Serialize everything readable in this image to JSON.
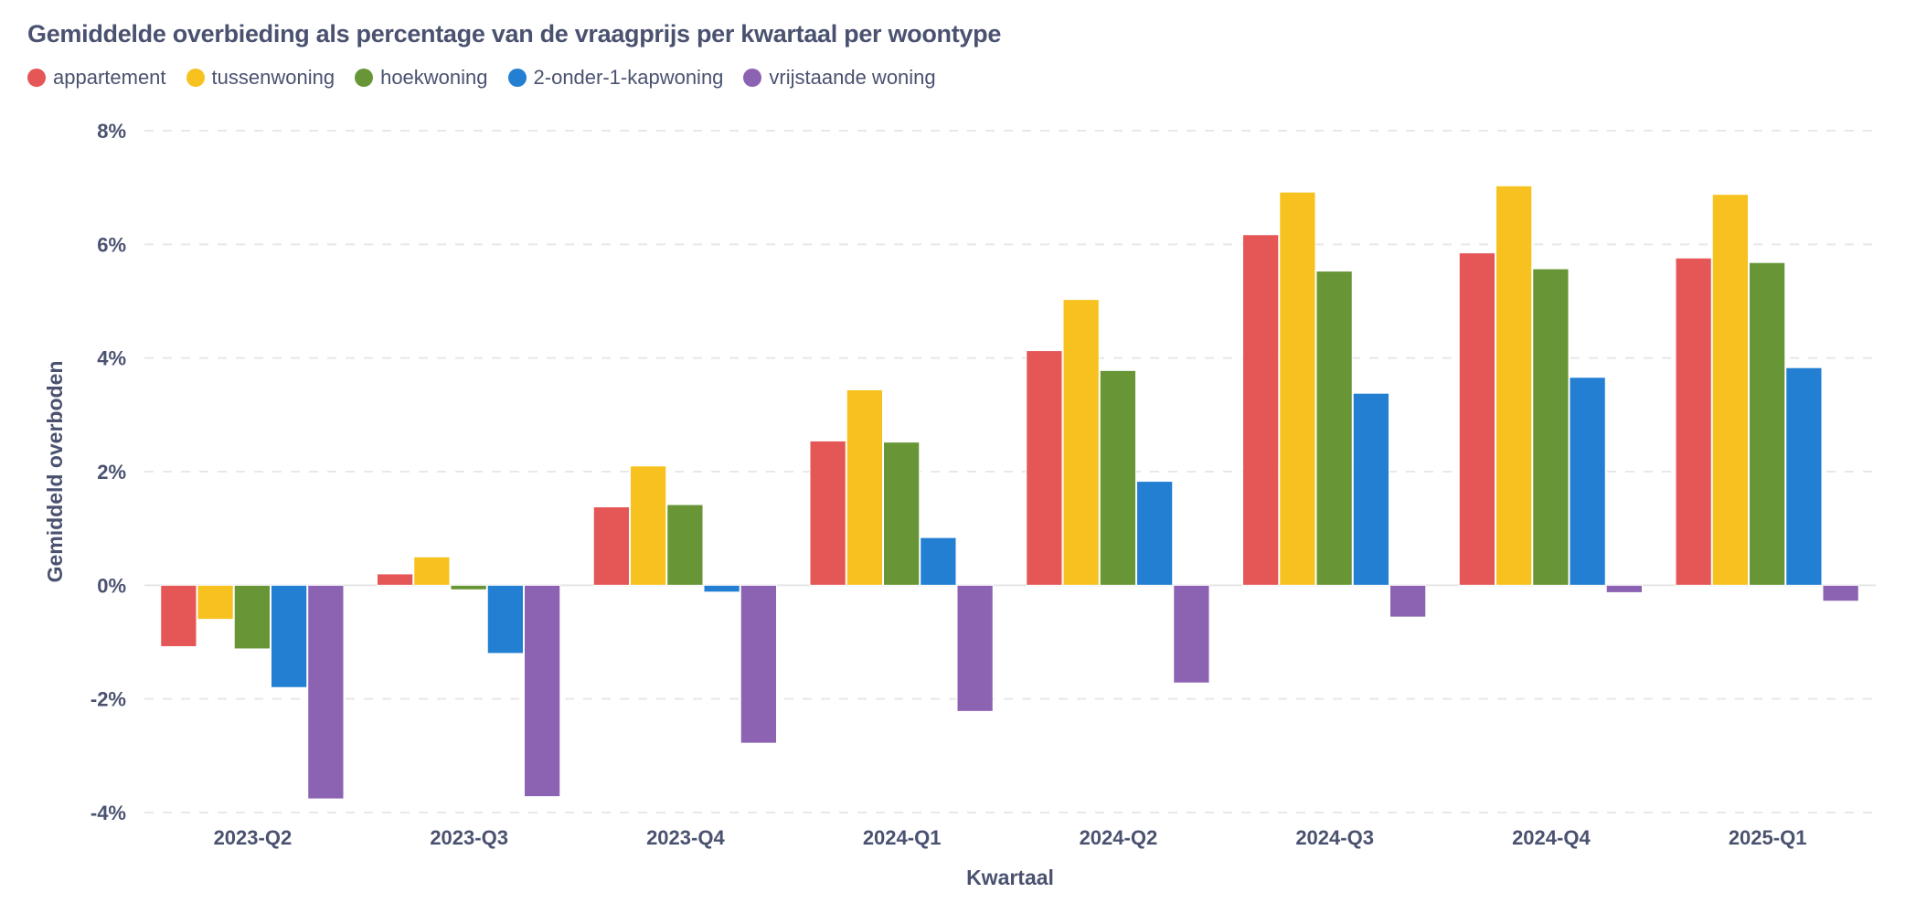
{
  "chart_data": {
    "type": "bar",
    "title": "Gemiddelde overbieding als percentage van de vraagprijs per kwartaal per woontype",
    "xlabel": "Kwartaal",
    "ylabel": "Gemiddeld overboden",
    "ylim": [
      -4,
      8
    ],
    "yticks": [
      -4,
      -2,
      0,
      2,
      4,
      6,
      8
    ],
    "ytick_labels": [
      "-4%",
      "-2%",
      "0%",
      "2%",
      "4%",
      "6%",
      "8%"
    ],
    "grid": "horizontal dashed",
    "legend_position": "top-left",
    "categories": [
      "2023-Q2",
      "2023-Q3",
      "2023-Q4",
      "2024-Q1",
      "2024-Q2",
      "2024-Q3",
      "2024-Q4",
      "2025-Q1"
    ],
    "series": [
      {
        "name": "appartement",
        "color": "#E55656",
        "values": [
          -1.08,
          0.2,
          1.38,
          2.54,
          4.13,
          6.17,
          5.85,
          5.76
        ]
      },
      {
        "name": "tussenwoning",
        "color": "#F7C21F",
        "values": [
          -0.6,
          0.5,
          2.1,
          3.44,
          5.03,
          6.92,
          7.03,
          6.88
        ]
      },
      {
        "name": "hoekwoning",
        "color": "#689636",
        "values": [
          -1.12,
          -0.08,
          1.42,
          2.52,
          3.78,
          5.53,
          5.57,
          5.68
        ]
      },
      {
        "name": "2-onder-1-kapwoning",
        "color": "#227FD2",
        "values": [
          -1.8,
          -1.2,
          -0.12,
          0.84,
          1.83,
          3.38,
          3.66,
          3.83
        ]
      },
      {
        "name": "vrijstaande woning",
        "color": "#8C62B2",
        "values": [
          -3.76,
          -3.72,
          -2.78,
          -2.22,
          -1.72,
          -0.56,
          -0.13,
          -0.28
        ]
      }
    ]
  }
}
